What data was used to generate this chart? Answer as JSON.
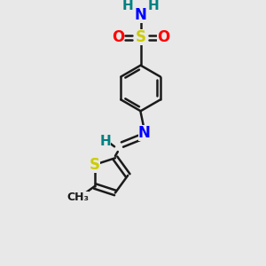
{
  "bg_color": "#e8e8e8",
  "bond_color": "#1a1a1a",
  "N_color": "#0000ff",
  "S_sulfonamide_color": "#cccc00",
  "O_color": "#ff0000",
  "H_color": "#008080",
  "thiophene_S_color": "#cccc00",
  "C_color": "#1a1a1a",
  "figsize": [
    3.0,
    3.0
  ],
  "dpi": 100,
  "xlim": [
    0,
    10
  ],
  "ylim": [
    0,
    10
  ]
}
